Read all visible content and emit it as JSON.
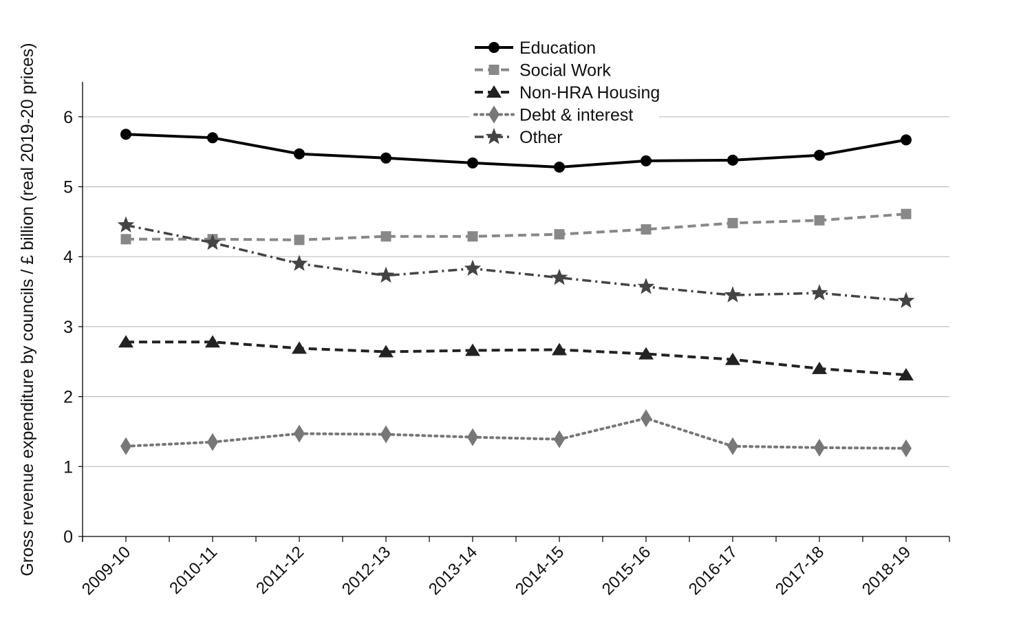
{
  "chart_data": {
    "type": "line",
    "title": "",
    "xlabel": "",
    "ylabel": "Gross revenue expenditure by councils / £ billion (real 2019-20 prices)",
    "categories": [
      "2009-10",
      "2010-11",
      "2011-12",
      "2012-13",
      "2013-14",
      "2014-15",
      "2015-16",
      "2016-17",
      "2017-18",
      "2018-19"
    ],
    "ylim": [
      0,
      6.5
    ],
    "yticks": [
      0,
      1,
      2,
      3,
      4,
      5,
      6
    ],
    "grid": "horizontal",
    "legend_position": "top-center",
    "series": [
      {
        "name": "Education",
        "values": [
          5.75,
          5.7,
          5.47,
          5.41,
          5.34,
          5.28,
          5.37,
          5.38,
          5.45,
          5.67
        ],
        "color": "#000000",
        "linestyle": "solid",
        "marker": "circle"
      },
      {
        "name": "Social Work",
        "values": [
          4.25,
          4.25,
          4.24,
          4.29,
          4.29,
          4.32,
          4.39,
          4.48,
          4.52,
          4.61
        ],
        "color": "#888888",
        "linestyle": "dashed",
        "marker": "square"
      },
      {
        "name": "Non-HRA Housing",
        "values": [
          2.78,
          2.78,
          2.69,
          2.64,
          2.66,
          2.67,
          2.61,
          2.53,
          2.4,
          2.31
        ],
        "color": "#222222",
        "linestyle": "dashed",
        "marker": "triangle"
      },
      {
        "name": "Debt & interest",
        "values": [
          1.29,
          1.35,
          1.47,
          1.46,
          1.42,
          1.39,
          1.69,
          1.29,
          1.27,
          1.26
        ],
        "color": "#777777",
        "linestyle": "dotted",
        "marker": "diamond"
      },
      {
        "name": "Other",
        "values": [
          4.45,
          4.2,
          3.9,
          3.73,
          3.83,
          3.7,
          3.57,
          3.45,
          3.48,
          3.37
        ],
        "color": "#444444",
        "linestyle": "dashdot",
        "marker": "star"
      }
    ]
  }
}
